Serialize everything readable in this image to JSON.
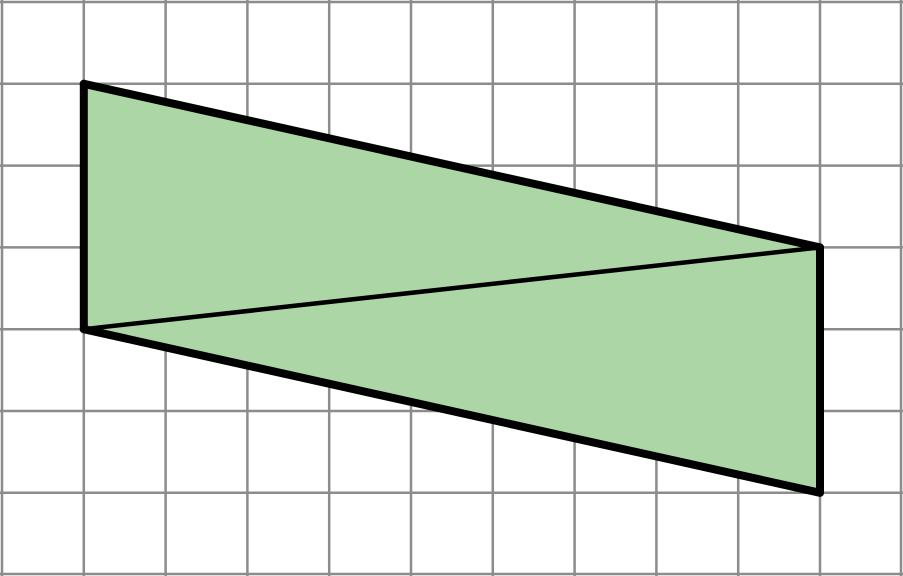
{
  "figure": {
    "grid": {
      "columns": 11,
      "rows": 7,
      "line_color": "#8c8c8c"
    },
    "shape": {
      "type": "parallelogram",
      "fill_color": "#acd6a5",
      "outline_color": "#000000",
      "vertices_grid": [
        [
          1,
          1
        ],
        [
          10,
          3
        ],
        [
          10,
          6
        ],
        [
          1,
          4
        ]
      ],
      "diagonal_grid": [
        [
          1,
          4
        ],
        [
          10,
          3
        ]
      ]
    }
  }
}
